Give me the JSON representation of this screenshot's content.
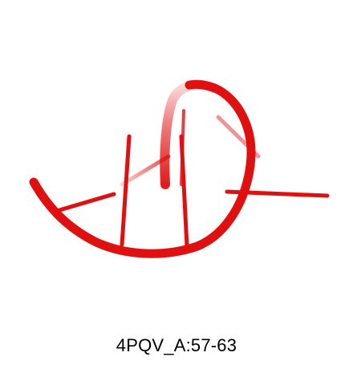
{
  "figure": {
    "caption": "4PQV_A:57-63",
    "structure_color": "#e01010",
    "background_color": "#ffffff"
  }
}
